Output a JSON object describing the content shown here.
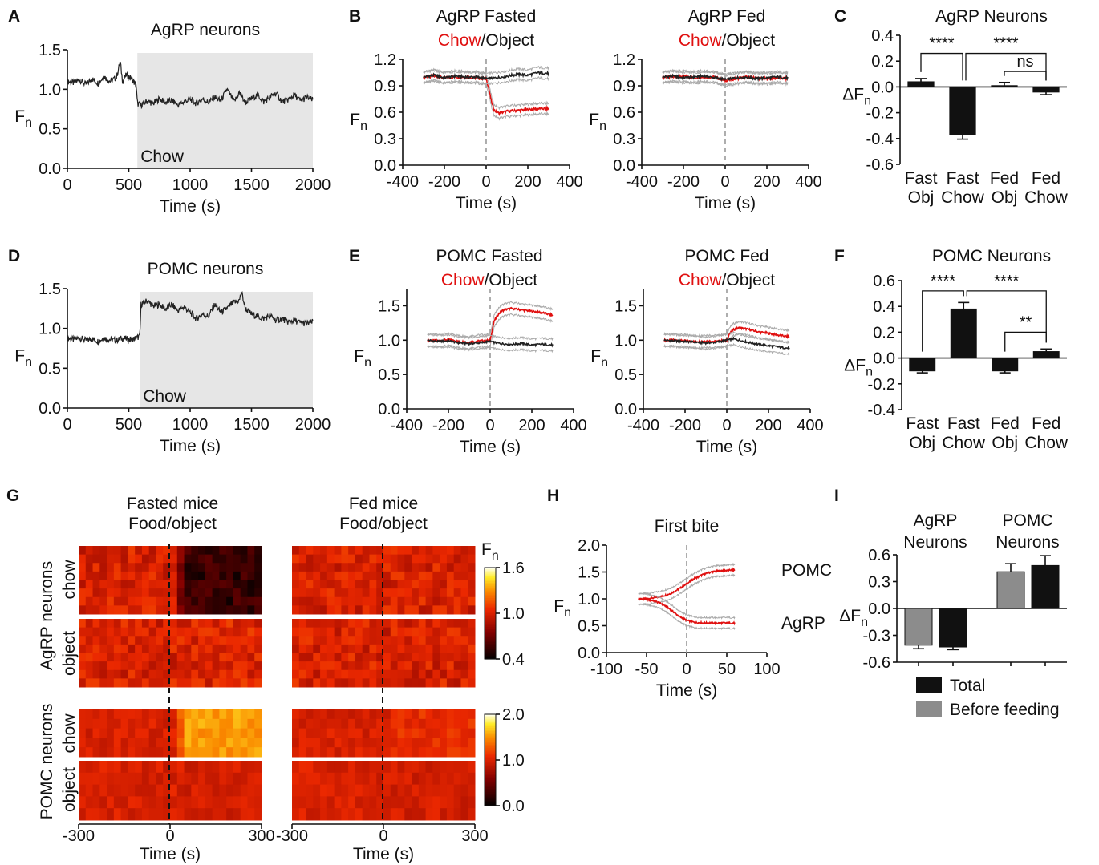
{
  "colors": {
    "trace": "#222222",
    "red": "#e01010",
    "gray_band": "#aaaaaa",
    "shade": "#e6e6e6",
    "bar_black": "#111111",
    "bar_gray": "#8c8c8c",
    "dash": "#999999"
  },
  "chart_data": [
    {
      "id": "A",
      "panel_label": "A",
      "type": "line",
      "title": "AgRP neurons",
      "xlabel": "Time (s)",
      "ylabel": "F",
      "ylabel_sub": "n",
      "xlim": [
        0,
        2000
      ],
      "ylim": [
        0,
        1.5
      ],
      "xticks": [
        0,
        500,
        1000,
        1500,
        2000
      ],
      "yticks": [
        0.0,
        0.5,
        1.0,
        1.5
      ],
      "shade_start": 570,
      "shade_label": "Chow",
      "series": [
        {
          "x": [
            0,
            50,
            100,
            150,
            200,
            250,
            300,
            350,
            400,
            430,
            450,
            480,
            520,
            560,
            570,
            600,
            650,
            700,
            750,
            800,
            850,
            900,
            950,
            1000,
            1050,
            1100,
            1150,
            1200,
            1250,
            1300,
            1330,
            1360,
            1400,
            1450,
            1500,
            1550,
            1600,
            1650,
            1700,
            1750,
            1800,
            1850,
            1900,
            1950,
            2000
          ],
          "y": [
            1.1,
            1.08,
            1.12,
            1.06,
            1.13,
            1.08,
            1.16,
            1.1,
            1.15,
            1.35,
            1.1,
            1.18,
            1.14,
            1.05,
            0.82,
            0.8,
            0.85,
            0.82,
            0.88,
            0.83,
            0.86,
            0.8,
            0.84,
            0.87,
            0.82,
            0.88,
            0.83,
            0.9,
            0.85,
            1.0,
            0.92,
            0.84,
            0.96,
            0.83,
            0.88,
            0.93,
            0.84,
            0.9,
            0.95,
            0.84,
            0.87,
            0.93,
            0.85,
            0.9,
            0.86
          ]
        }
      ]
    },
    {
      "id": "B1",
      "panel_label": "B",
      "type": "line",
      "title_parts": [
        "AgRP Fasted",
        "Chow",
        "/Object"
      ],
      "xlabel": "Time (s)",
      "ylabel": "F",
      "ylabel_sub": "n",
      "xlim": [
        -400,
        400
      ],
      "ylim": [
        0,
        1.2
      ],
      "xticks": [
        -400,
        -200,
        0,
        200,
        400
      ],
      "yticks": [
        0.0,
        0.3,
        0.6,
        0.9,
        1.2
      ],
      "series": [
        {
          "name": "Chow",
          "color": "red",
          "x": [
            -300,
            -250,
            -200,
            -150,
            -100,
            -50,
            0,
            10,
            20,
            30,
            40,
            60,
            80,
            100,
            150,
            200,
            250,
            300
          ],
          "y": [
            1.0,
            1.01,
            0.99,
            1.0,
            1.0,
            0.99,
            0.98,
            0.9,
            0.78,
            0.68,
            0.62,
            0.59,
            0.6,
            0.61,
            0.62,
            0.63,
            0.64,
            0.64
          ]
        },
        {
          "name": "Object",
          "color": "trace",
          "x": [
            -300,
            -250,
            -200,
            -150,
            -100,
            -50,
            0,
            50,
            100,
            150,
            200,
            250,
            300
          ],
          "y": [
            1.0,
            1.02,
            0.99,
            1.01,
            1.0,
            1.0,
            0.98,
            0.99,
            1.01,
            1.03,
            1.02,
            1.05,
            1.04
          ]
        }
      ]
    },
    {
      "id": "B2",
      "panel_label": "",
      "type": "line",
      "title_parts": [
        "AgRP Fed",
        "Chow",
        "/Object"
      ],
      "xlabel": "Time (s)",
      "ylabel": "F",
      "ylabel_sub": "n",
      "xlim": [
        -400,
        400
      ],
      "ylim": [
        0,
        1.2
      ],
      "xticks": [
        -400,
        -200,
        0,
        200,
        400
      ],
      "yticks": [
        0.0,
        0.3,
        0.6,
        0.9,
        1.2
      ],
      "series": [
        {
          "name": "Chow",
          "color": "red",
          "x": [
            -300,
            -250,
            -200,
            -150,
            -100,
            -50,
            0,
            50,
            100,
            150,
            200,
            250,
            300
          ],
          "y": [
            1.0,
            1.0,
            1.01,
            0.99,
            1.0,
            1.0,
            0.96,
            0.98,
            1.0,
            0.99,
            0.98,
            0.99,
            0.98
          ]
        },
        {
          "name": "Object",
          "color": "trace",
          "x": [
            -300,
            -250,
            -200,
            -150,
            -100,
            -50,
            0,
            50,
            100,
            150,
            200,
            250,
            300
          ],
          "y": [
            1.0,
            1.01,
            0.99,
            1.0,
            1.01,
            0.99,
            0.97,
            0.99,
            1.0,
            0.98,
            0.99,
            1.0,
            0.99
          ]
        }
      ]
    },
    {
      "id": "C",
      "panel_label": "C",
      "type": "bar",
      "title": "AgRP Neurons",
      "ylabel": "ΔF",
      "ylabel_sub": "n",
      "ylim": [
        -0.6,
        0.4
      ],
      "yticks": [
        -0.6,
        -0.4,
        -0.2,
        0.0,
        0.2,
        0.4
      ],
      "categories": [
        [
          "Fast",
          "Obj"
        ],
        [
          "Fast",
          "Chow"
        ],
        [
          "Fed",
          "Obj"
        ],
        [
          "Fed",
          "Chow"
        ]
      ],
      "values": [
        0.04,
        -0.37,
        0.01,
        -0.04
      ],
      "errors": [
        0.025,
        0.035,
        0.025,
        0.02
      ],
      "bar_colors": [
        "bar_black",
        "bar_black",
        "bar_black",
        "bar_black"
      ],
      "sig": [
        {
          "from": 0,
          "to": 1,
          "y": 0.26,
          "label": "****"
        },
        {
          "from": 1,
          "to": 3,
          "y": 0.26,
          "label": "****"
        },
        {
          "from": 2,
          "to": 3,
          "y": 0.12,
          "label": "ns"
        }
      ]
    },
    {
      "id": "D",
      "panel_label": "D",
      "type": "line",
      "title": "POMC neurons",
      "xlabel": "Time (s)",
      "ylabel": "F",
      "ylabel_sub": "n",
      "xlim": [
        0,
        2000
      ],
      "ylim": [
        0,
        1.5
      ],
      "xticks": [
        0,
        500,
        1000,
        1500,
        2000
      ],
      "yticks": [
        0.0,
        0.5,
        1.0,
        1.5
      ],
      "shade_start": 590,
      "shade_label": "Chow",
      "series": [
        {
          "x": [
            0,
            50,
            100,
            150,
            200,
            250,
            300,
            350,
            400,
            450,
            500,
            550,
            590,
            600,
            650,
            700,
            750,
            800,
            850,
            900,
            950,
            1000,
            1050,
            1100,
            1150,
            1200,
            1250,
            1300,
            1350,
            1400,
            1420,
            1450,
            1500,
            1550,
            1600,
            1650,
            1700,
            1750,
            1800,
            1850,
            1900,
            1950,
            2000
          ],
          "y": [
            0.88,
            0.86,
            0.88,
            0.85,
            0.87,
            0.84,
            0.88,
            0.86,
            0.85,
            0.88,
            0.86,
            0.87,
            0.9,
            1.3,
            1.35,
            1.28,
            1.3,
            1.24,
            1.3,
            1.22,
            1.27,
            1.2,
            1.12,
            1.18,
            1.15,
            1.3,
            1.2,
            1.25,
            1.32,
            1.35,
            1.45,
            1.25,
            1.18,
            1.15,
            1.12,
            1.16,
            1.1,
            1.12,
            1.08,
            1.1,
            1.07,
            1.06,
            1.08
          ]
        }
      ]
    },
    {
      "id": "E1",
      "panel_label": "E",
      "type": "line",
      "title_parts": [
        "POMC Fasted",
        "Chow",
        "/Object"
      ],
      "xlabel": "Time (s)",
      "ylabel": "F",
      "ylabel_sub": "n",
      "xlim": [
        -400,
        400
      ],
      "ylim": [
        0,
        1.75
      ],
      "xticks": [
        -400,
        -200,
        0,
        200,
        400
      ],
      "yticks": [
        0.0,
        0.5,
        1.0,
        1.5
      ],
      "series": [
        {
          "name": "Chow",
          "color": "red",
          "x": [
            -300,
            -250,
            -200,
            -150,
            -100,
            -50,
            0,
            10,
            20,
            40,
            60,
            80,
            100,
            150,
            200,
            250,
            300
          ],
          "y": [
            1.0,
            0.99,
            1.01,
            0.98,
            0.97,
            0.99,
            1.0,
            1.15,
            1.28,
            1.38,
            1.43,
            1.45,
            1.46,
            1.44,
            1.42,
            1.4,
            1.36
          ]
        },
        {
          "name": "Object",
          "color": "trace",
          "x": [
            -300,
            -250,
            -200,
            -150,
            -100,
            -50,
            0,
            50,
            100,
            150,
            200,
            250,
            300
          ],
          "y": [
            1.0,
            0.98,
            0.99,
            0.96,
            0.95,
            0.96,
            0.98,
            0.95,
            0.94,
            0.95,
            0.93,
            0.94,
            0.93
          ]
        }
      ]
    },
    {
      "id": "E2",
      "panel_label": "",
      "type": "line",
      "title_parts": [
        "POMC Fed",
        "Chow",
        "/Object"
      ],
      "xlabel": "Time (s)",
      "ylabel": "F",
      "ylabel_sub": "n",
      "xlim": [
        -400,
        400
      ],
      "ylim": [
        0,
        1.75
      ],
      "xticks": [
        -400,
        -200,
        0,
        200,
        400
      ],
      "yticks": [
        0.0,
        0.5,
        1.0,
        1.5
      ],
      "series": [
        {
          "name": "Chow",
          "color": "red",
          "x": [
            -300,
            -250,
            -200,
            -150,
            -100,
            -50,
            0,
            10,
            30,
            60,
            100,
            150,
            200,
            250,
            300
          ],
          "y": [
            1.0,
            1.0,
            0.99,
            0.98,
            0.99,
            0.98,
            1.0,
            1.08,
            1.15,
            1.18,
            1.16,
            1.12,
            1.1,
            1.07,
            1.05
          ]
        },
        {
          "name": "Object",
          "color": "trace",
          "x": [
            -300,
            -250,
            -200,
            -150,
            -100,
            -50,
            0,
            30,
            60,
            100,
            150,
            200,
            250,
            300
          ],
          "y": [
            1.0,
            0.99,
            0.98,
            0.97,
            0.96,
            0.97,
            1.0,
            1.02,
            1.0,
            0.97,
            0.94,
            0.92,
            0.9,
            0.88
          ]
        }
      ]
    },
    {
      "id": "F",
      "panel_label": "F",
      "type": "bar",
      "title": "POMC Neurons",
      "ylabel": "ΔF",
      "ylabel_sub": "n",
      "ylim": [
        -0.4,
        0.6
      ],
      "yticks": [
        -0.4,
        -0.2,
        0.0,
        0.2,
        0.4,
        0.6
      ],
      "categories": [
        [
          "Fast",
          "Obj"
        ],
        [
          "Fast",
          "Chow"
        ],
        [
          "Fed",
          "Obj"
        ],
        [
          "Fed",
          "Chow"
        ]
      ],
      "values": [
        -0.1,
        0.38,
        -0.1,
        0.05
      ],
      "errors": [
        0.015,
        0.05,
        0.015,
        0.02
      ],
      "bar_colors": [
        "bar_black",
        "bar_black",
        "bar_black",
        "bar_black"
      ],
      "sig": [
        {
          "from": 0,
          "to": 1,
          "y": 0.52,
          "label": "****"
        },
        {
          "from": 1,
          "to": 3,
          "y": 0.52,
          "label": "****"
        },
        {
          "from": 2,
          "to": 3,
          "y": 0.2,
          "label": "**"
        }
      ]
    },
    {
      "id": "G",
      "panel_label": "G",
      "type": "heatmap",
      "col_titles": [
        [
          "Fasted mice",
          "Food/object"
        ],
        [
          "Fed mice",
          "Food/object"
        ]
      ],
      "row_group_labels": [
        "AgRP neurons",
        "POMC neurons"
      ],
      "row_labels": [
        "chow",
        "object",
        "chow",
        "object"
      ],
      "xlabel": "Time (s)",
      "xlim": [
        -300,
        300
      ],
      "xticks": [
        -300,
        0,
        300
      ],
      "colorbars": [
        {
          "title": "F",
          "title_sub": "n",
          "ticks": [
            1.6,
            1.0,
            0.4
          ],
          "range": [
            0.4,
            1.6
          ]
        },
        {
          "ticks": [
            2.0,
            1.0,
            0.0
          ],
          "range": [
            0.0,
            2.0
          ]
        }
      ],
      "blocks": [
        {
          "row": 0,
          "col": 0,
          "base": 1.0,
          "post": 0.55,
          "scale": 0,
          "rows": 8
        },
        {
          "row": 0,
          "col": 1,
          "base": 1.0,
          "post": 1.0,
          "scale": 0,
          "rows": 8
        },
        {
          "row": 1,
          "col": 0,
          "base": 1.0,
          "post": 1.02,
          "scale": 0,
          "rows": 8
        },
        {
          "row": 1,
          "col": 1,
          "base": 1.0,
          "post": 1.0,
          "scale": 0,
          "rows": 8
        },
        {
          "row": 2,
          "col": 0,
          "base": 1.0,
          "post": 1.55,
          "scale": 1,
          "rows": 5
        },
        {
          "row": 2,
          "col": 1,
          "base": 1.0,
          "post": 1.1,
          "scale": 1,
          "rows": 5
        },
        {
          "row": 3,
          "col": 0,
          "base": 1.0,
          "post": 0.98,
          "scale": 1,
          "rows": 5
        },
        {
          "row": 3,
          "col": 1,
          "base": 1.0,
          "post": 0.98,
          "scale": 1,
          "rows": 5
        }
      ]
    },
    {
      "id": "H",
      "panel_label": "H",
      "type": "line",
      "title": "First bite",
      "xlabel": "Time (s)",
      "ylabel": "F",
      "ylabel_sub": "n",
      "xlim": [
        -100,
        100
      ],
      "ylim": [
        0,
        2.0
      ],
      "xticks": [
        -100,
        -50,
        0,
        50,
        100
      ],
      "yticks": [
        0.0,
        0.5,
        1.0,
        1.5,
        2.0
      ],
      "series": [
        {
          "name": "POMC",
          "color": "red",
          "x": [
            -60,
            -50,
            -40,
            -30,
            -20,
            -10,
            0,
            10,
            20,
            30,
            40,
            50,
            60
          ],
          "y": [
            1.0,
            1.0,
            1.02,
            1.05,
            1.1,
            1.18,
            1.28,
            1.38,
            1.45,
            1.5,
            1.52,
            1.53,
            1.54
          ]
        },
        {
          "name": "AgRP",
          "color": "red",
          "x": [
            -60,
            -50,
            -40,
            -30,
            -20,
            -10,
            0,
            10,
            20,
            30,
            40,
            50,
            60
          ],
          "y": [
            1.0,
            0.99,
            0.96,
            0.9,
            0.8,
            0.68,
            0.6,
            0.56,
            0.55,
            0.55,
            0.55,
            0.55,
            0.55
          ]
        }
      ]
    },
    {
      "id": "I",
      "panel_label": "I",
      "type": "bar",
      "group_labels": [
        [
          "AgRP",
          "Neurons"
        ],
        [
          "POMC",
          "Neurons"
        ]
      ],
      "ylabel": "ΔF",
      "ylabel_sub": "n",
      "ylim": [
        -0.6,
        0.6
      ],
      "yticks": [
        -0.6,
        -0.3,
        0.0,
        0.3,
        0.6
      ],
      "values": [
        -0.41,
        -0.43,
        0.41,
        0.48
      ],
      "errors": [
        0.04,
        0.03,
        0.09,
        0.11
      ],
      "bar_colors": [
        "bar_gray",
        "bar_black",
        "bar_gray",
        "bar_black"
      ],
      "legend": [
        {
          "label": "Total",
          "color": "bar_black"
        },
        {
          "label": "Before feeding",
          "color": "bar_gray"
        }
      ]
    }
  ]
}
